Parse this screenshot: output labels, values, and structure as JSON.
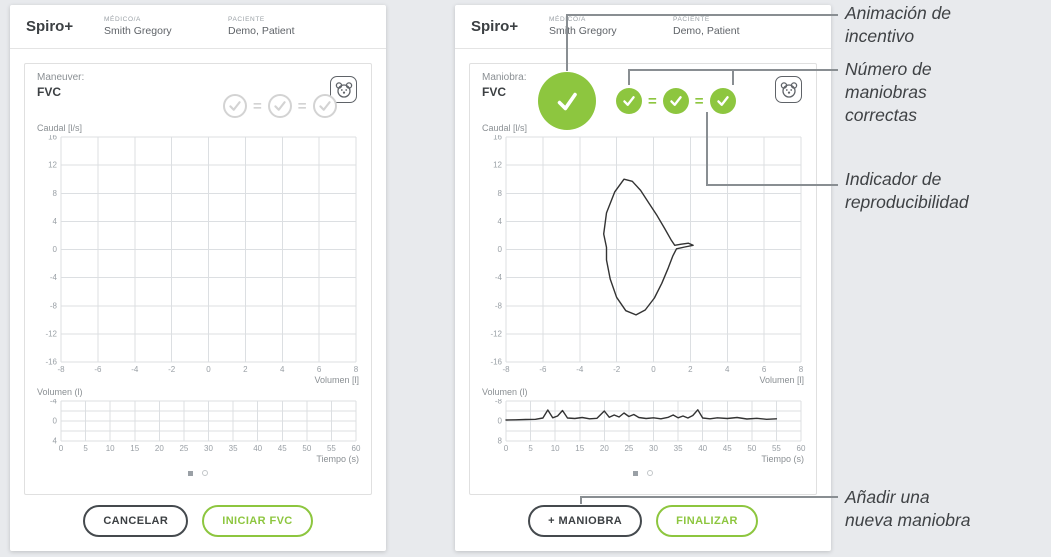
{
  "theme": {
    "accent_green": "#8dc63f",
    "background": "#e8eaed"
  },
  "annotations": [
    {
      "text": "Animación de\nincentivo"
    },
    {
      "text": "Número de\nmaniobras\ncorrectas"
    },
    {
      "text": "Indicador de\nreproducibilidad"
    },
    {
      "text": "Añadir una\nnueva maniobra"
    }
  ],
  "panels": [
    {
      "header": {
        "app": "Spiro+",
        "doctor_label": "MÉDICO/A",
        "doctor_name": "Smith Gregory",
        "patient_label": "PACIENTE",
        "patient_name": "Demo, Patient"
      },
      "maneuver_label": "Maneuver:",
      "maneuver_value": "FVC",
      "reproducibility_symbol": "=",
      "flow_chart": {
        "type": "line",
        "ylabel": "Caudal [l/s]",
        "xlabel": "Volumen [l]",
        "yticks": [
          16,
          12,
          8,
          4,
          0,
          -4,
          -8,
          -12,
          -16
        ],
        "xticks": [
          -8,
          -6,
          -4,
          -2,
          0,
          2,
          4,
          6,
          8
        ],
        "points": []
      },
      "volume_chart": {
        "type": "line",
        "ylabel": "Volumen (l)",
        "xlabel": "Tiempo (s)",
        "yticks": [
          -4,
          0,
          4
        ],
        "y_minor": 1,
        "xticks": [
          0,
          5,
          10,
          15,
          20,
          25,
          30,
          35,
          40,
          45,
          50,
          55,
          60
        ],
        "points": []
      },
      "buttons": [
        {
          "label": "CANCELAR"
        },
        {
          "label": "INICIAR FVC"
        }
      ]
    },
    {
      "header": {
        "app": "Spiro+",
        "doctor_label": "MÉDICO/A",
        "doctor_name": "Smith Gregory",
        "patient_label": "PACIENTE",
        "patient_name": "Demo, Patient"
      },
      "maneuver_label": "Maniobra:",
      "maneuver_value": "FVC",
      "reproducibility_symbol": "=",
      "flow_chart": {
        "type": "line",
        "ylabel": "Caudal [l/s]",
        "xlabel": "Volumen [l]",
        "yticks": [
          16,
          12,
          8,
          4,
          0,
          -4,
          -8,
          -12,
          -16
        ],
        "xticks": [
          -8,
          -6,
          -4,
          -2,
          0,
          2,
          4,
          6,
          8
        ],
        "points": [
          [
            -2.55,
            0.3
          ],
          [
            -2.7,
            2.2
          ],
          [
            -2.55,
            5.2
          ],
          [
            -2.1,
            8.2
          ],
          [
            -1.6,
            10
          ],
          [
            -1.15,
            9.7
          ],
          [
            -0.7,
            8.4
          ],
          [
            -0.25,
            6.6
          ],
          [
            0.2,
            4.8
          ],
          [
            0.6,
            3
          ],
          [
            0.95,
            1.4
          ],
          [
            1.15,
            0.6
          ],
          [
            1.5,
            0.75
          ],
          [
            1.9,
            0.9
          ],
          [
            2.15,
            0.6
          ],
          [
            1.7,
            0.35
          ],
          [
            1.25,
            0.1
          ],
          [
            1.05,
            -0.9
          ],
          [
            0.8,
            -2.6
          ],
          [
            0.45,
            -4.8
          ],
          [
            0.05,
            -6.9
          ],
          [
            -0.45,
            -8.6
          ],
          [
            -0.95,
            -9.3
          ],
          [
            -1.5,
            -8.7
          ],
          [
            -2,
            -6.8
          ],
          [
            -2.35,
            -4.2
          ],
          [
            -2.55,
            -1.5
          ],
          [
            -2.55,
            0.3
          ]
        ]
      },
      "volume_chart": {
        "type": "line",
        "ylabel": "Volumen (l)",
        "xlabel": "Tiempo (s)",
        "yticks": [
          -8,
          0,
          8
        ],
        "y_minor": 1,
        "xticks": [
          0,
          5,
          10,
          15,
          20,
          25,
          30,
          35,
          40,
          45,
          50,
          55,
          60
        ],
        "points": [
          [
            0,
            -0.4
          ],
          [
            2,
            -0.5
          ],
          [
            4,
            -0.6
          ],
          [
            6,
            -0.7
          ],
          [
            7.5,
            -1.2
          ],
          [
            8.5,
            -4.4
          ],
          [
            9.5,
            -1.3
          ],
          [
            10.5,
            -2
          ],
          [
            11.5,
            -4.2
          ],
          [
            12.5,
            -1.2
          ],
          [
            14,
            -1
          ],
          [
            15.5,
            -1.4
          ],
          [
            17,
            -0.9
          ],
          [
            18.5,
            -1.1
          ],
          [
            20,
            -4
          ],
          [
            21,
            -1.5
          ],
          [
            22,
            -2.4
          ],
          [
            23,
            -1.6
          ],
          [
            24,
            -3.2
          ],
          [
            25,
            -1.8
          ],
          [
            26,
            -2.6
          ],
          [
            27,
            -1.4
          ],
          [
            28.5,
            -1
          ],
          [
            30,
            -1.3
          ],
          [
            31.5,
            -0.9
          ],
          [
            33,
            -1.5
          ],
          [
            34,
            -2.4
          ],
          [
            35,
            -1.3
          ],
          [
            36,
            -2
          ],
          [
            37,
            -1.2
          ],
          [
            38,
            -2.2
          ],
          [
            39,
            -4.5
          ],
          [
            40,
            -1.2
          ],
          [
            41.5,
            -0.9
          ],
          [
            43,
            -1.3
          ],
          [
            45,
            -1
          ],
          [
            47,
            -1.4
          ],
          [
            49,
            -0.8
          ],
          [
            51,
            -1.1
          ],
          [
            53,
            -0.7
          ],
          [
            55,
            -0.9
          ]
        ]
      },
      "buttons": [
        {
          "label": "+ MANIOBRA"
        },
        {
          "label": "FINALIZAR"
        }
      ]
    }
  ]
}
